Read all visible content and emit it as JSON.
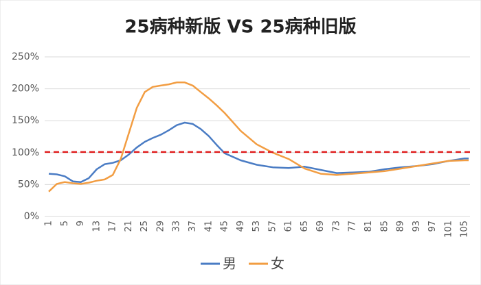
{
  "chart_data": {
    "type": "line",
    "title": "25病种新版 VS 25病种旧版",
    "x": [
      1,
      3,
      5,
      7,
      9,
      11,
      13,
      15,
      17,
      19,
      21,
      23,
      25,
      27,
      29,
      31,
      33,
      35,
      37,
      39,
      41,
      43,
      45,
      49,
      53,
      57,
      61,
      65,
      69,
      73,
      77,
      81,
      85,
      89,
      93,
      97,
      101,
      105,
      106
    ],
    "series": [
      {
        "name": "男",
        "color": "#4a7cc4",
        "values": [
          67,
          66,
          63,
          55,
          54,
          60,
          74,
          82,
          84,
          88,
          97,
          108,
          117,
          123,
          128,
          135,
          143,
          147,
          145,
          137,
          126,
          112,
          99,
          88,
          81,
          77,
          76,
          78,
          73,
          68,
          69,
          70,
          74,
          77,
          79,
          82,
          87,
          91,
          91
        ]
      },
      {
        "name": "女",
        "color": "#f29d42",
        "values": [
          39,
          51,
          54,
          52,
          51,
          53,
          56,
          58,
          65,
          90,
          130,
          170,
          195,
          203,
          205,
          207,
          210,
          210,
          205,
          195,
          185,
          174,
          162,
          134,
          113,
          100,
          90,
          75,
          67,
          65,
          67,
          69,
          71,
          75,
          79,
          83,
          87,
          88,
          88
        ]
      }
    ],
    "xlim": [
      1,
      106
    ],
    "xticks": [
      1,
      5,
      9,
      13,
      17,
      21,
      25,
      29,
      33,
      37,
      41,
      45,
      49,
      53,
      57,
      61,
      65,
      69,
      73,
      77,
      81,
      85,
      89,
      93,
      97,
      101,
      105
    ],
    "ylim": [
      0,
      250
    ],
    "yticks": [
      {
        "value": 0,
        "label": "0%"
      },
      {
        "value": 50,
        "label": "50%"
      },
      {
        "value": 100,
        "label": "100%"
      },
      {
        "value": 150,
        "label": "150%"
      },
      {
        "value": 200,
        "label": "200%"
      },
      {
        "value": 250,
        "label": "250%"
      }
    ],
    "grid": true,
    "reference_line": {
      "value": 101,
      "color": "#e02020"
    },
    "legend": "bottom"
  }
}
